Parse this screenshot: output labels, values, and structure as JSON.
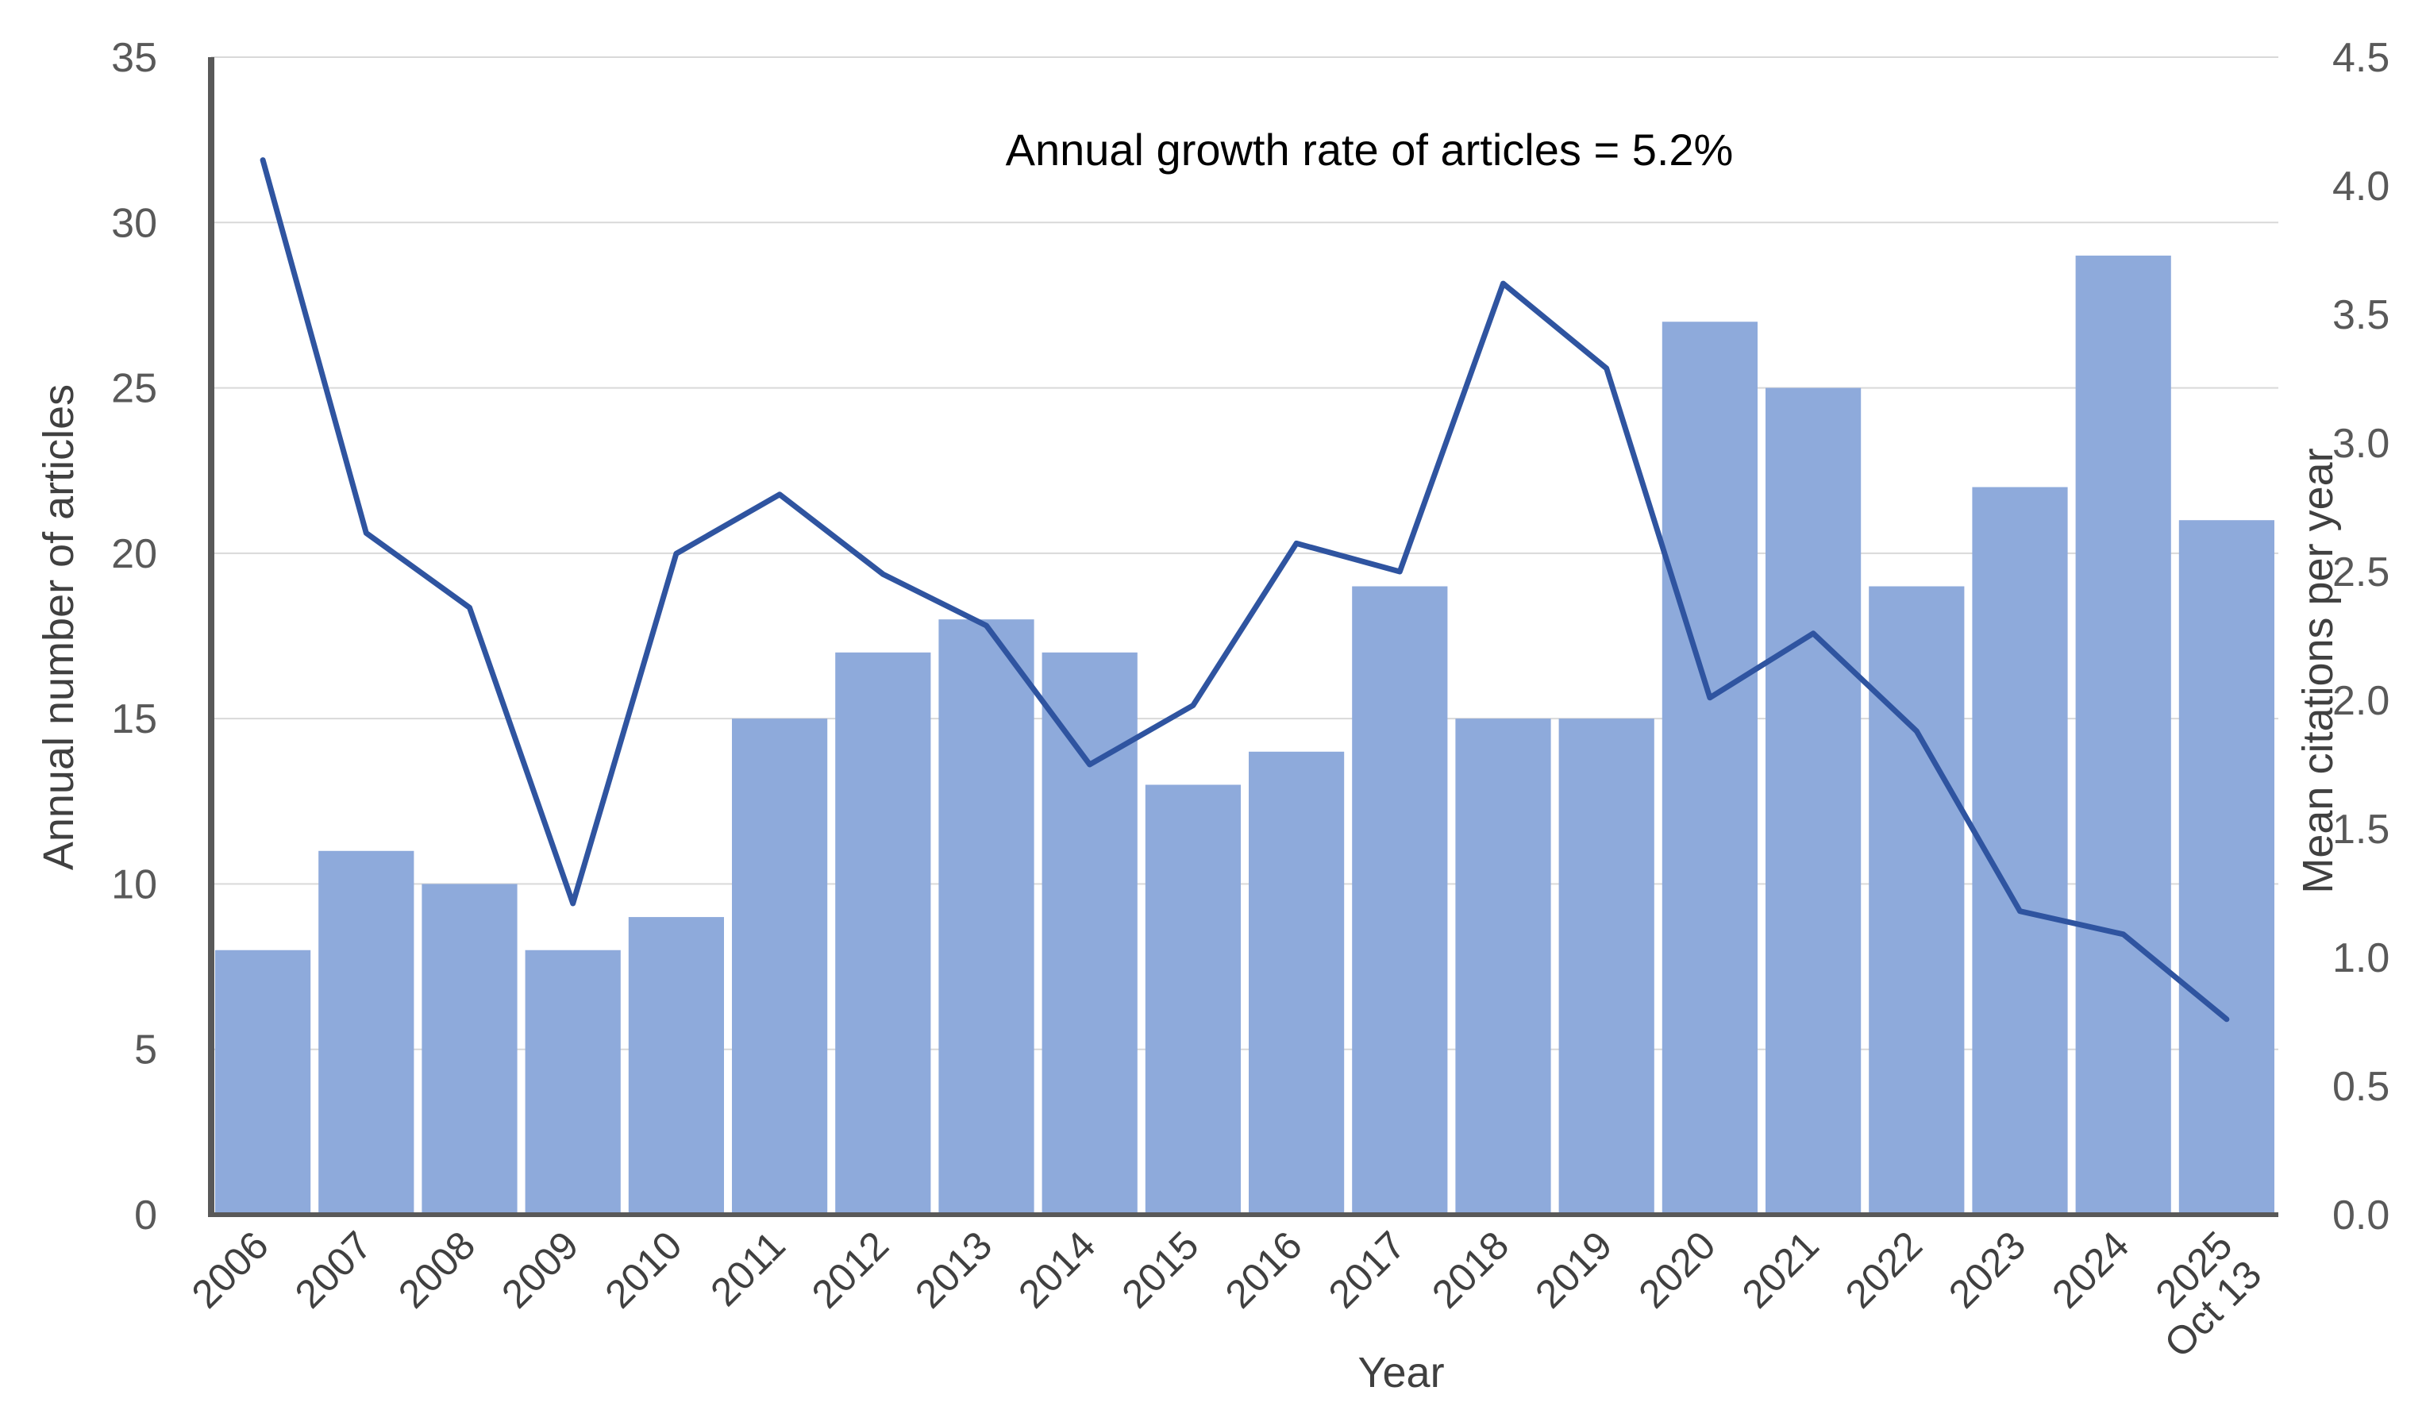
{
  "chart_data": {
    "type": "bar",
    "title": "",
    "annotation": "Annual growth rate of articles = 5.2%",
    "xlabel": "Year",
    "ylabel": "Annual number of articles",
    "y2label": "Mean citations per year",
    "categories": [
      "2006",
      "2007",
      "2008",
      "2009",
      "2010",
      "2011",
      "2012",
      "2013",
      "2014",
      "2015",
      "2016",
      "2017",
      "2018",
      "2019",
      "2020",
      "2021",
      "2022",
      "2023",
      "2024",
      "2025 Oct 13"
    ],
    "ylim": [
      0,
      35
    ],
    "y_ticks": [
      "0",
      "5",
      "10",
      "15",
      "20",
      "25",
      "30",
      "35"
    ],
    "y2lim": [
      0,
      4.5
    ],
    "y2_ticks": [
      "0.0",
      "0.5",
      "1.0",
      "1.5",
      "2.0",
      "2.5",
      "3.0",
      "3.5",
      "4.0",
      "4.5"
    ],
    "grid": true,
    "series": [
      {
        "name": "Annual number of articles",
        "type": "bar",
        "axis": "left",
        "color": "#8eaadb",
        "values": [
          8,
          11,
          10,
          8,
          9,
          15,
          17,
          18,
          17,
          13,
          14,
          19,
          15,
          15,
          27,
          25,
          19,
          22,
          29,
          21
        ]
      },
      {
        "name": "Mean citations per year",
        "type": "line",
        "axis": "right",
        "color": "#2f54a0",
        "values": [
          4.1,
          2.65,
          2.36,
          1.21,
          2.57,
          2.8,
          2.49,
          2.29,
          1.75,
          1.98,
          2.61,
          2.5,
          3.62,
          3.29,
          2.01,
          2.26,
          1.88,
          1.18,
          1.09,
          0.76
        ]
      }
    ]
  }
}
